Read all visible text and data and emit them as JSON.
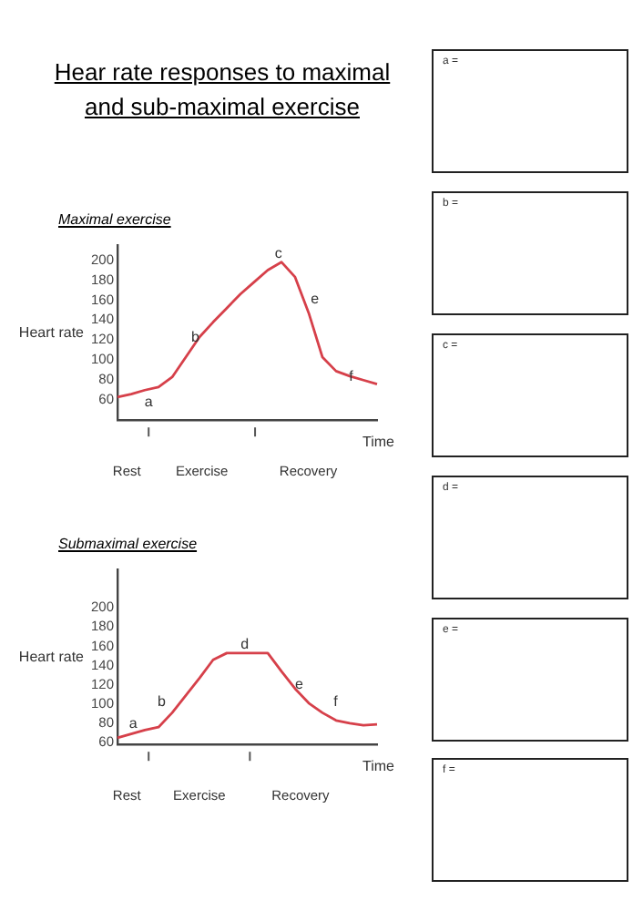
{
  "chart_data": [
    {
      "type": "other",
      "title": "Hear rate responses to maximal and sub-maximal exercise",
      "annotations": [
        "a =",
        "b =",
        "c =",
        "d =",
        "e =",
        "f ="
      ]
    },
    {
      "type": "line",
      "title": "Maximal exercise",
      "xlabel": "Time",
      "ylabel": "Heart rate",
      "marker": "none",
      "ylim": [
        40,
        215
      ],
      "yticks": [
        60,
        80,
        100,
        120,
        140,
        160,
        180,
        200
      ],
      "categories": [
        null,
        null,
        null,
        null,
        null,
        null,
        null,
        null,
        null,
        null,
        null,
        null,
        null,
        null,
        null,
        null,
        null,
        null,
        null,
        null
      ],
      "series": [
        {
          "color": "#d6404a",
          "values": [
            63,
            66,
            70,
            73,
            83,
            103,
            123,
            138,
            152,
            166,
            178,
            190,
            198,
            183,
            147,
            103,
            89,
            84,
            80,
            76
          ]
        }
      ],
      "annotations": [
        "Rest",
        "Exercise",
        "Recovery",
        "a",
        "b",
        "c",
        "e",
        "f"
      ]
    },
    {
      "type": "line",
      "title": "Submaximal exercise",
      "xlabel": "Time",
      "ylabel": "Heart rate",
      "marker": "none",
      "ylim": [
        58,
        240
      ],
      "yticks": [
        60,
        80,
        100,
        120,
        140,
        160,
        180,
        200
      ],
      "categories": [
        null,
        null,
        null,
        null,
        null,
        null,
        null,
        null,
        null,
        null,
        null,
        null,
        null,
        null,
        null,
        null,
        null,
        null,
        null,
        null
      ],
      "series": [
        {
          "color": "#d6404a",
          "values": [
            65,
            69,
            73,
            76,
            91,
            109,
            127,
            146,
            153,
            153,
            153,
            153,
            134,
            116,
            101,
            91,
            83,
            80,
            78,
            79
          ]
        }
      ],
      "annotations": [
        "Rest",
        "Exercise",
        "Recovery",
        "a",
        "b",
        "d",
        "e",
        "f"
      ]
    }
  ]
}
